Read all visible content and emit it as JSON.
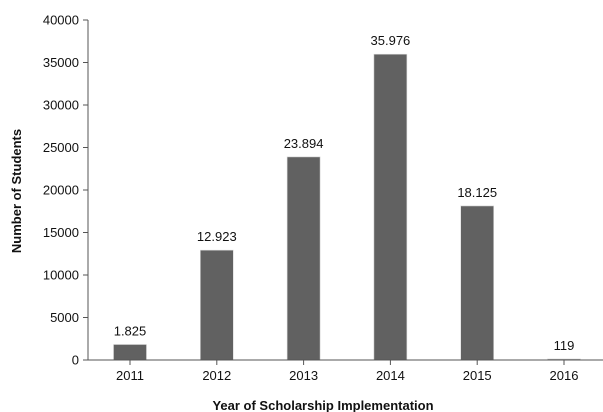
{
  "chart_data": {
    "type": "bar",
    "title": "",
    "xlabel": "Year of Scholarship Implementation",
    "ylabel": "Number of Students",
    "categories": [
      "2011",
      "2012",
      "2013",
      "2014",
      "2015",
      "2016"
    ],
    "values": [
      1825,
      12923,
      23894,
      35976,
      18125,
      119
    ],
    "data_labels": [
      "1.825",
      "12.923",
      "23.894",
      "35.976",
      "18.125",
      "119"
    ],
    "ylim": [
      0,
      40000
    ],
    "yticks": [
      "0",
      "5000",
      "10000",
      "15000",
      "20000",
      "25000",
      "30000",
      "35000",
      "40000"
    ],
    "grid": false,
    "legend": "none",
    "bar_color": "#616161"
  }
}
